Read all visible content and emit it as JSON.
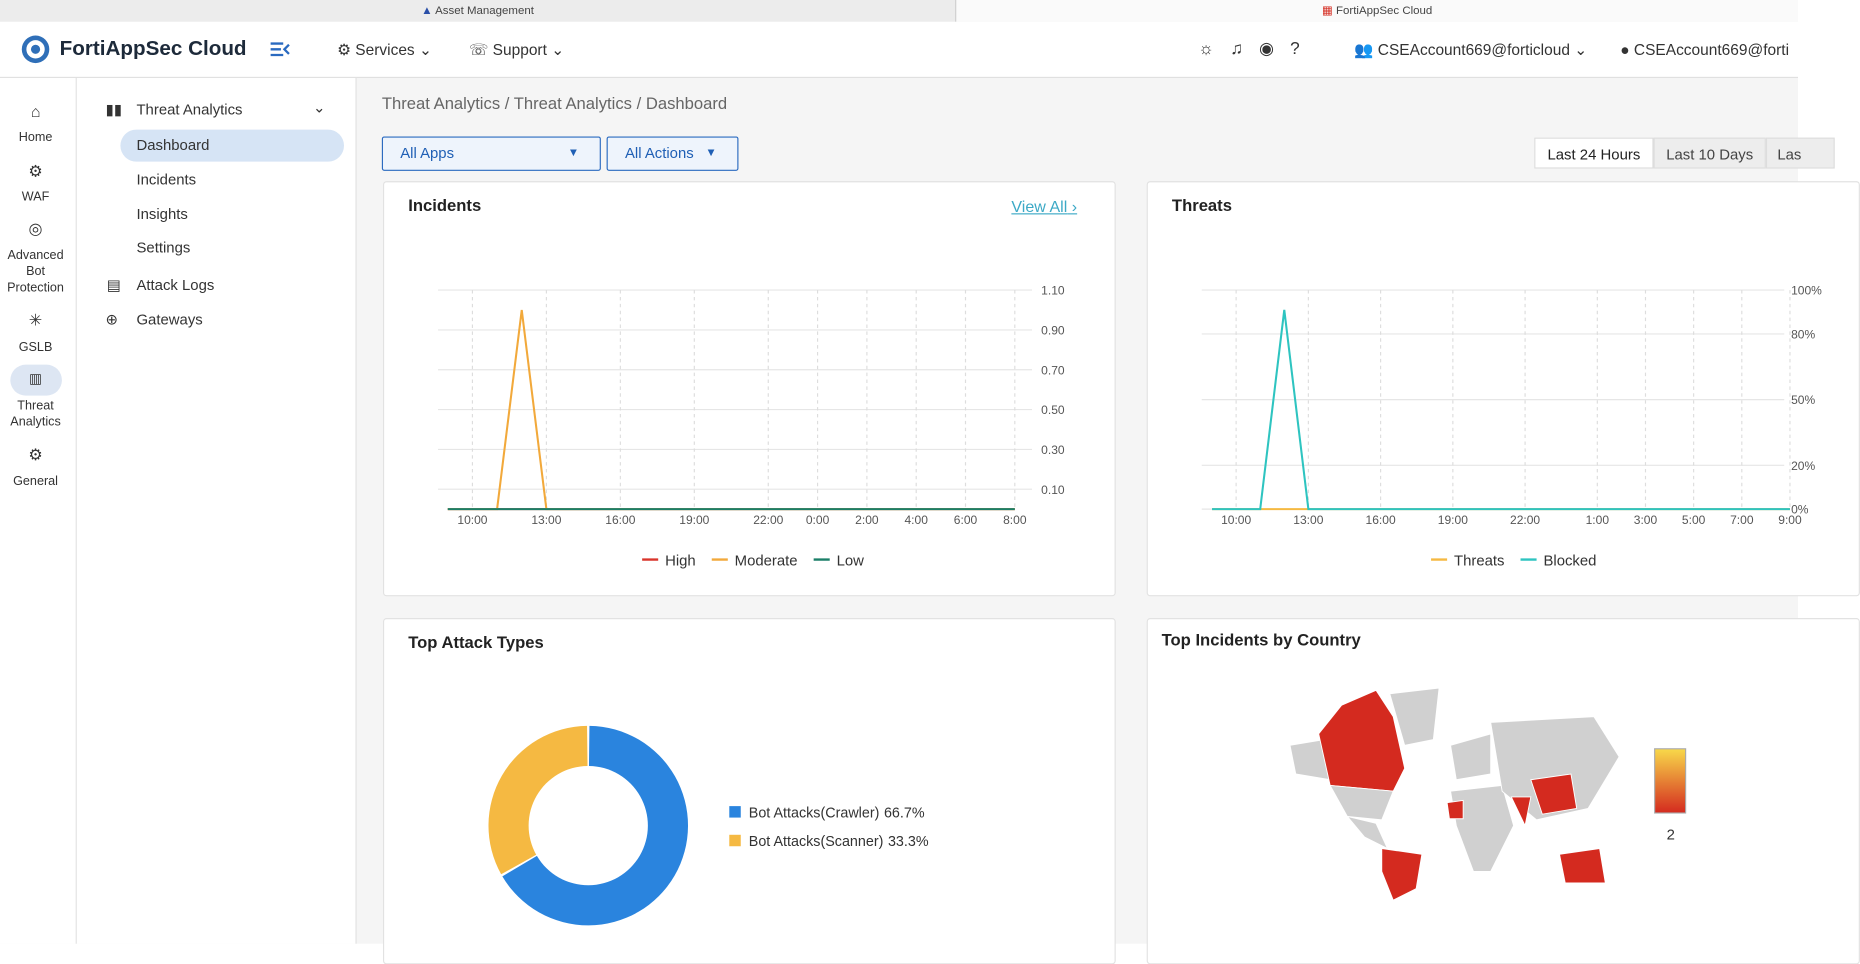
{
  "tabs": [
    "Asset Management",
    "FortiAppSec Cloud"
  ],
  "header": {
    "brand": "FortiAppSec Cloud",
    "menus": [
      "Services",
      "Support"
    ],
    "accounts": [
      "CSEAccount669@forticloud",
      "CSEAccount669@forti"
    ]
  },
  "rail": [
    "Home",
    "WAF",
    "Advanced Bot Protection",
    "GSLB",
    "Threat Analytics",
    "General"
  ],
  "sidebar": {
    "group": "Threat Analytics",
    "items": [
      "Dashboard",
      "Incidents",
      "Insights",
      "Settings"
    ],
    "links": [
      "Attack Logs",
      "Gateways"
    ]
  },
  "breadcrumb": "Threat Analytics / Threat Analytics / Dashboard",
  "filters": [
    "All Apps",
    "All Actions"
  ],
  "time_ranges": [
    "Last 24 Hours",
    "Last 10 Days",
    "Las"
  ],
  "incidents": {
    "title": "Incidents",
    "link": "View All",
    "chart_data": {
      "type": "line",
      "categories": [
        null,
        "10:00",
        null,
        null,
        "13:00",
        null,
        null,
        "16:00",
        null,
        null,
        "19:00",
        null,
        null,
        "22:00",
        null,
        "0:00",
        null,
        "2:00",
        null,
        "4:00",
        null,
        "6:00",
        null,
        "8:00"
      ],
      "series": [
        {
          "name": "High",
          "color": "#d9352b",
          "values": [
            0,
            0,
            0,
            0,
            0,
            0,
            0,
            0,
            0,
            0,
            0,
            0,
            0,
            0,
            0,
            0,
            0,
            0,
            0,
            0,
            0,
            0,
            0,
            0
          ]
        },
        {
          "name": "Moderate",
          "color": "#f2a93b",
          "values": [
            0,
            0,
            0,
            1,
            0,
            0,
            0,
            0,
            0,
            0,
            0,
            0,
            0,
            0,
            0,
            0,
            0,
            0,
            0,
            0,
            0,
            0,
            0,
            0
          ]
        },
        {
          "name": "Low",
          "color": "#1b7f68",
          "values": [
            0,
            0,
            0,
            0,
            0,
            0,
            0,
            0,
            0,
            0,
            0,
            0,
            0,
            0,
            0,
            0,
            0,
            0,
            0,
            0,
            0,
            0,
            0,
            0
          ]
        }
      ],
      "ylim": [
        0,
        1.1
      ],
      "yticks": [
        {
          "value": 0.1,
          "label": "0.10"
        },
        {
          "value": 0.3,
          "label": "0.30"
        },
        {
          "value": 0.5,
          "label": "0.50"
        },
        {
          "value": 0.7,
          "label": "0.70"
        },
        {
          "value": 0.9,
          "label": "0.90"
        },
        {
          "value": 1.1,
          "label": "1.10"
        }
      ],
      "grid": true
    }
  },
  "threats": {
    "title": "Threats",
    "chart_data": {
      "type": "line",
      "categories": [
        null,
        "10:00",
        null,
        null,
        "13:00",
        null,
        null,
        "16:00",
        null,
        null,
        "19:00",
        null,
        null,
        "22:00",
        null,
        null,
        "1:00",
        null,
        "3:00",
        null,
        "5:00",
        null,
        "7:00",
        null,
        "9:00"
      ],
      "series": [
        {
          "name": "Threats",
          "color": "#f5b942",
          "values": [
            0,
            0,
            0,
            0,
            0,
            0,
            0,
            0,
            0,
            0,
            0,
            0,
            0,
            0,
            0,
            0,
            0,
            0,
            0,
            0,
            0,
            0,
            0,
            0,
            0
          ]
        },
        {
          "name": "Blocked",
          "color": "#2ec4c0",
          "values": [
            0,
            0,
            0,
            91,
            0,
            0,
            0,
            0,
            0,
            0,
            0,
            0,
            0,
            0,
            0,
            0,
            0,
            0,
            0,
            0,
            0,
            0,
            0,
            0,
            0
          ]
        }
      ],
      "ylim": [
        0,
        100
      ],
      "yticks": [
        {
          "value": 0,
          "label": "0%"
        },
        {
          "value": 20,
          "label": "20%"
        },
        {
          "value": 50,
          "label": "50%"
        },
        {
          "value": 80,
          "label": "80%"
        },
        {
          "value": 100,
          "label": "100%"
        }
      ],
      "grid": true
    }
  },
  "attack_types": {
    "title": "Top Attack Types",
    "chart_data": {
      "type": "donut",
      "categories": [
        "Bot Attacks(Crawler)",
        "Bot Attacks(Scanner)"
      ],
      "values": [
        66.7,
        33.3
      ],
      "value_labels": [
        "66.7%",
        "33.3%"
      ],
      "colors": [
        "#2a84de",
        "#f5b942"
      ]
    }
  },
  "country_map": {
    "title": "Top Incidents by Country",
    "scale_max": 2
  }
}
